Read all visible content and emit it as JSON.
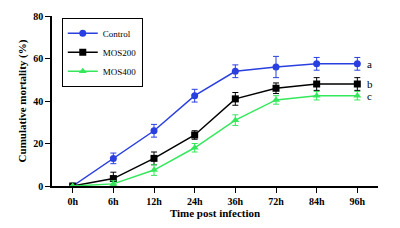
{
  "chart_data": {
    "type": "line",
    "x_label": "Time post infection",
    "y_label": "Cumulative mortality (%)",
    "categories": [
      "0h",
      "6h",
      "12h",
      "24h",
      "36h",
      "72h",
      "84h",
      "96h"
    ],
    "series": [
      {
        "name": "Control",
        "color": "#2a3fe0",
        "marker": "circle",
        "values": [
          0,
          13,
          26,
          42.5,
          54,
          56,
          57.5,
          57.5
        ],
        "errors": [
          0,
          2.5,
          3,
          3,
          3,
          5,
          3,
          3
        ]
      },
      {
        "name": "MOS200",
        "color": "#000000",
        "marker": "square",
        "values": [
          0,
          3.5,
          13,
          24,
          41,
          46,
          48,
          48
        ],
        "errors": [
          0,
          3,
          3,
          2,
          3,
          2.5,
          3,
          3
        ]
      },
      {
        "name": "MOS400",
        "color": "#33e85a",
        "marker": "triangle-up",
        "values": [
          0,
          1,
          7.5,
          18,
          31,
          40.5,
          42.5,
          42.5
        ],
        "errors": [
          0,
          1.5,
          2.5,
          2,
          2.5,
          2,
          2,
          2
        ]
      }
    ],
    "annotations": [
      {
        "text": "a",
        "x": "96h",
        "y": 57.5
      },
      {
        "text": "b",
        "x": "96h",
        "y": 48
      },
      {
        "text": "c",
        "x": "96h",
        "y": 42.5
      }
    ],
    "ylim": [
      0,
      80
    ],
    "yticks": [
      0,
      20,
      40,
      60,
      80
    ],
    "grid": false,
    "legend": "top left"
  }
}
